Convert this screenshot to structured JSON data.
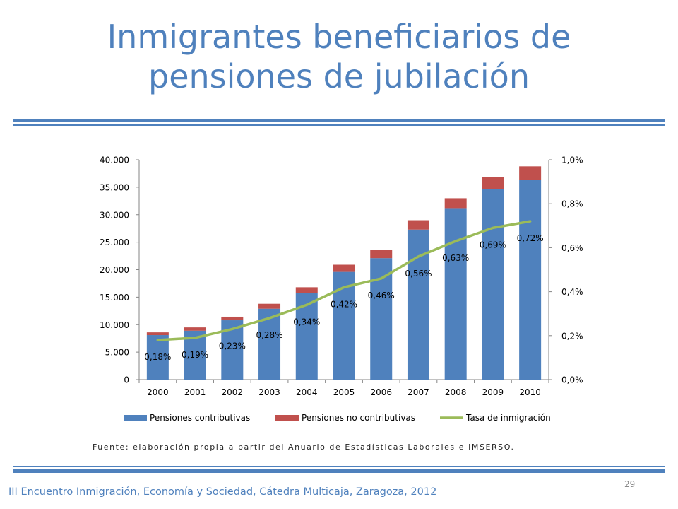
{
  "slide": {
    "title_line1": "Inmigrantes beneficiarios de",
    "title_line2": "pensiones de jubilación",
    "source_note": "Fuente: elaboración propia a partir del Anuario de Estadísticas Laborales e IMSERSO.",
    "footer": "III Encuentro Inmigración, Economía y Sociedad, Cátedra Multicaja, Zaragoza, 2012",
    "page_number": "29"
  },
  "colors": {
    "title": "#4f81bd",
    "contributivas": "#4f81bd",
    "no_contributivas": "#c0504d",
    "tasa": "#9bbb59"
  },
  "chart_data": {
    "type": "bar",
    "stacked": true,
    "secondary_axis_series": "Tasa de inmigración",
    "categories": [
      "2000",
      "2001",
      "2002",
      "2003",
      "2004",
      "2005",
      "2006",
      "2007",
      "2008",
      "2009",
      "2010"
    ],
    "series": [
      {
        "name": "Pensiones contributivas",
        "type": "bar",
        "axis": "left",
        "values": [
          8100,
          8900,
          10800,
          12900,
          15800,
          19600,
          22100,
          27300,
          31200,
          34700,
          36300
        ]
      },
      {
        "name": "Pensiones no contributivas",
        "type": "bar",
        "axis": "left",
        "values": [
          500,
          600,
          650,
          900,
          1000,
          1300,
          1500,
          1700,
          1800,
          2100,
          2500
        ]
      },
      {
        "name": "Tasa de inmigración",
        "type": "line",
        "axis": "right",
        "values": [
          0.18,
          0.19,
          0.23,
          0.28,
          0.34,
          0.42,
          0.46,
          0.56,
          0.63,
          0.69,
          0.72
        ],
        "labels": [
          "0,18%",
          "0,19%",
          "0,23%",
          "0,28%",
          "0,34%",
          "0,42%",
          "0,46%",
          "0,56%",
          "0,63%",
          "0,69%",
          "0,72%"
        ]
      }
    ],
    "y_left": {
      "lim": [
        0,
        40000
      ],
      "ticks": [
        0,
        5000,
        10000,
        15000,
        20000,
        25000,
        30000,
        35000,
        40000
      ],
      "tick_labels": [
        "0",
        "5.000",
        "10.000",
        "15.000",
        "20.000",
        "25.000",
        "30.000",
        "35.000",
        "40.000"
      ]
    },
    "y_right": {
      "lim": [
        0,
        1.0
      ],
      "ticks": [
        0,
        0.2,
        0.4,
        0.6,
        0.8,
        1.0
      ],
      "tick_labels": [
        "0,0%",
        "0,2%",
        "0,4%",
        "0,6%",
        "0,8%",
        "1,0%"
      ]
    },
    "grid": false,
    "legend_position": "bottom"
  }
}
